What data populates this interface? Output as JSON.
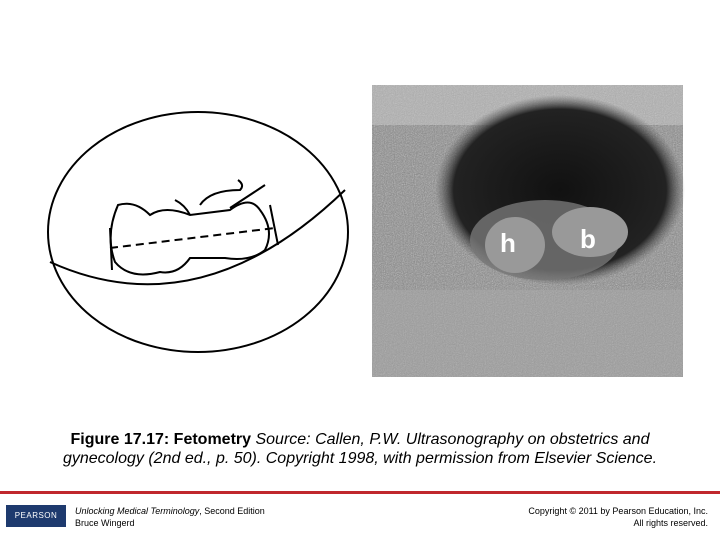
{
  "figure": {
    "image_labels": [
      "h",
      "b"
    ],
    "caption": {
      "label": "Figure 17.17: Fetometry",
      "text": "Source: Callen, P.W. Ultrasonography on obstetrics and gynecology (2nd ed., p. 50). Copyright 1998, with permission from Elsevier Science."
    }
  },
  "footer": {
    "logo": "PEARSON",
    "book_title": "Unlocking Medical Terminology",
    "edition": ", Second Edition",
    "author": "Bruce Wingerd",
    "copyright": "Copyright © 2011 by Pearson Education, Inc.",
    "rights": "All rights reserved."
  }
}
